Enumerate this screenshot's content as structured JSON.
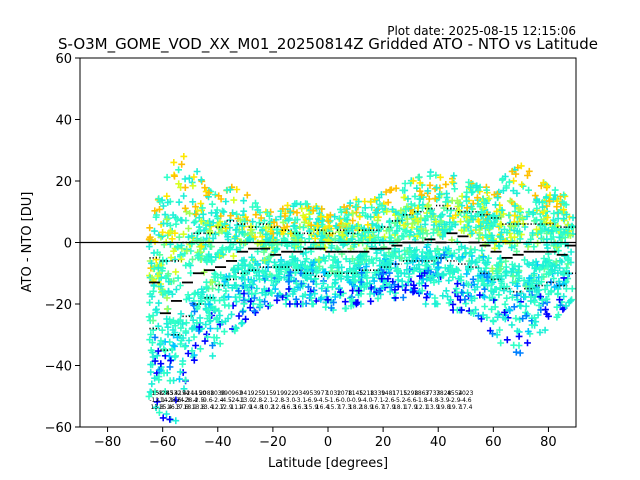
{
  "plot_date": "Plot date: 2025-08-15 12:15:06",
  "chart_data": {
    "type": "scatter",
    "title": "S-O3M_GOME_VOD_XX_M01_20250814Z Gridded ATO - NTO vs Latitude",
    "xlabel": "Latitude [degrees]",
    "ylabel": "ATO - NTO [DU]",
    "xlim": [
      -90,
      90
    ],
    "ylim": [
      -60,
      60
    ],
    "xticks": [
      -80,
      -60,
      -40,
      -20,
      0,
      20,
      40,
      60,
      80
    ],
    "yticks": [
      -60,
      -40,
      -20,
      0,
      20,
      40,
      60
    ],
    "xtick_labels": [
      "−80",
      "−60",
      "−40",
      "−20",
      "0",
      "20",
      "40",
      "60",
      "80"
    ],
    "ytick_labels": [
      "−60",
      "−40",
      "−20",
      "0",
      "20",
      "40",
      "60"
    ],
    "grid": false,
    "reference_line_y": 0,
    "marker": "plus",
    "colors": [
      "#0000ff",
      "#0080ff",
      "#00c8ff",
      "#1ef0d8",
      "#30ffc8",
      "#60ff98",
      "#a0ff58",
      "#d8ff20",
      "#ffe800",
      "#ffc000"
    ],
    "scatter_envelope": {
      "lat": [
        -65,
        -60,
        -55,
        -50,
        -45,
        -40,
        -35,
        -30,
        -25,
        -20,
        -15,
        -10,
        -5,
        0,
        5,
        10,
        15,
        20,
        25,
        30,
        35,
        40,
        45,
        50,
        55,
        60,
        65,
        70,
        75,
        80,
        85,
        89
      ],
      "upper": [
        5,
        18,
        28,
        30,
        18,
        15,
        18,
        16,
        12,
        10,
        12,
        13,
        12,
        10,
        11,
        14,
        13,
        16,
        18,
        20,
        22,
        24,
        22,
        20,
        18,
        18,
        22,
        25,
        22,
        18,
        16,
        12
      ],
      "lower": [
        -50,
        -57,
        -58,
        -48,
        -40,
        -35,
        -30,
        -25,
        -22,
        -20,
        -20,
        -20,
        -20,
        -22,
        -22,
        -20,
        -20,
        -18,
        -18,
        -18,
        -20,
        -20,
        -22,
        -22,
        -24,
        -30,
        -35,
        -36,
        -30,
        -28,
        -22,
        -18
      ]
    },
    "median": {
      "lat": [
        -63,
        -59,
        -55,
        -51,
        -47,
        -43,
        -39,
        -35,
        -31,
        -27,
        -23,
        -19,
        -15,
        -11,
        -7,
        -3,
        1,
        5,
        9,
        13,
        17,
        21,
        25,
        29,
        33,
        37,
        41,
        45,
        49,
        53,
        57,
        61,
        65,
        69,
        73,
        77,
        81,
        85,
        88
      ],
      "value": [
        -13,
        -23,
        -19,
        -13,
        -10,
        -9,
        -8,
        -6,
        -3,
        -2,
        -2,
        -4,
        -3,
        -3,
        -2,
        -2,
        -3,
        -3,
        -3,
        -3,
        -2,
        -2,
        -1,
        0,
        0,
        1,
        0,
        3,
        2,
        0,
        -1,
        -3,
        -5,
        -4,
        -3,
        -3,
        -3,
        -4,
        -1
      ]
    },
    "upper_quartile": {
      "lat": [
        -63,
        -59,
        -55,
        -51,
        -47,
        -43,
        -39,
        -35,
        -31,
        -27,
        -23,
        -19,
        -15,
        -11,
        -7,
        -3,
        1,
        5,
        9,
        13,
        17,
        21,
        25,
        29,
        33,
        37,
        41,
        45,
        49,
        53,
        57,
        61,
        65,
        69,
        73,
        77,
        81,
        85,
        88
      ],
      "value": [
        -5,
        -6,
        -6,
        0,
        3,
        3,
        5,
        7,
        6,
        5,
        6,
        5,
        4,
        3,
        3,
        4,
        3,
        4,
        3,
        4,
        4,
        5,
        7,
        9,
        10,
        11,
        12,
        11,
        10,
        10,
        9,
        8,
        6,
        6,
        6,
        6,
        6,
        5,
        5
      ]
    },
    "lower_quartile": {
      "lat": [
        -63,
        -59,
        -55,
        -51,
        -47,
        -43,
        -39,
        -35,
        -31,
        -27,
        -23,
        -19,
        -15,
        -11,
        -7,
        -3,
        1,
        5,
        9,
        13,
        17,
        21,
        25,
        29,
        33,
        37,
        41,
        45,
        49,
        53,
        57,
        61,
        65,
        69,
        73,
        77,
        81,
        85,
        88
      ],
      "value": [
        -28,
        -35,
        -30,
        -24,
        -20,
        -18,
        -14,
        -12,
        -10,
        -9,
        -8,
        -8,
        -8,
        -9,
        -10,
        -11,
        -10,
        -10,
        -10,
        -9,
        -9,
        -8,
        -7,
        -6,
        -6,
        -6,
        -5,
        -6,
        -7,
        -8,
        -10,
        -12,
        -15,
        -16,
        -15,
        -14,
        -13,
        -14,
        -10
      ]
    },
    "count_rows": [
      [
        "153",
        "4283",
        "4532",
        "4154",
        "4244",
        "1150",
        "2088",
        "1030",
        "990",
        "962",
        "941",
        "925",
        "915",
        "919",
        "922",
        "934",
        "953",
        "977",
        "1032",
        "1078",
        "1145",
        "1218",
        "1339",
        "1481",
        "1715",
        "1298",
        "1867",
        "3733",
        "7828",
        "4554",
        "2023"
      ],
      [
        "-12.1",
        "-14.1",
        "-28.6",
        "-24.3",
        "-28.4",
        "-2.5",
        "-9.6",
        "-2.4",
        "-4.5",
        "-24.1",
        "-13.0",
        "-2.8",
        "-2.1",
        "-2.8",
        "-3.0",
        "-3.1",
        "-6.9",
        "-4.5",
        "-1.6",
        "-0.0",
        "-0.9",
        "-4.0",
        "-7.1",
        "-2.6",
        "-5.2",
        "-6.6",
        "-1.8",
        "-4.8",
        "-3.9",
        "-2.9",
        "-4.6"
      ],
      [
        "13.8",
        "15.4",
        "16.3",
        "17.6",
        "18.9",
        "13.8",
        "13.4",
        "12.7",
        "12.9",
        "11.4",
        "17.9",
        "14.8",
        "10.2",
        "12.6",
        "16.3",
        "16.3",
        "15.9",
        "16.4",
        "15.7",
        "17.3",
        "18.2",
        "18.9",
        "16.7",
        "17.9",
        "18.1",
        "17.9",
        "12.1",
        "13.9",
        "19.8",
        "19.7",
        "17.4"
      ]
    ],
    "count_row_lat": [
      -62,
      -59,
      -56,
      -53,
      -50,
      -47,
      -44,
      -40,
      -37,
      -33,
      -30,
      -26,
      -22,
      -18,
      -14,
      -10,
      -6,
      -2,
      2,
      6,
      10,
      14,
      18,
      22,
      26,
      30,
      34,
      38,
      42,
      46,
      50
    ]
  }
}
